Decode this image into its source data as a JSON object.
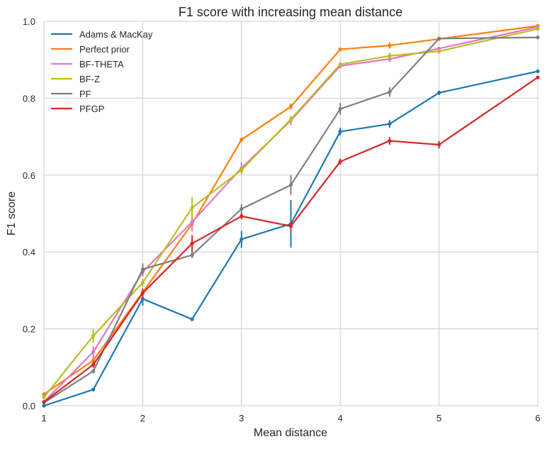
{
  "chart_data": {
    "type": "line",
    "title": "F1 score with increasing mean distance",
    "xlabel": "Mean distance",
    "ylabel": "F1 score",
    "xlim": [
      1,
      6
    ],
    "ylim": [
      0,
      1
    ],
    "xticks": [
      1,
      2,
      3,
      4,
      5,
      6
    ],
    "yticks": [
      0.0,
      0.2,
      0.4,
      0.6,
      0.8,
      1.0
    ],
    "xtick_labels": [
      "1",
      "2",
      "3",
      "4",
      "5",
      "6"
    ],
    "ytick_labels": [
      "0.0",
      "0.2",
      "0.4",
      "0.6",
      "0.8",
      "1.0"
    ],
    "grid": true,
    "legend_position": "top-left",
    "x": [
      1,
      1.5,
      2,
      2.5,
      3,
      3.5,
      4,
      4.5,
      5,
      6
    ],
    "series": [
      {
        "name": "Adams & MacKay",
        "color": "#1f77b4",
        "values": [
          0.0,
          0.042,
          0.278,
          0.225,
          0.433,
          0.473,
          0.713,
          0.733,
          0.814,
          0.87
        ],
        "errors": [
          0.0,
          0.004,
          0.018,
          0.004,
          0.022,
          0.062,
          0.01,
          0.01,
          0.006,
          0.004
        ]
      },
      {
        "name": "Perfect prior",
        "color": "#ff7f0e",
        "values": [
          0.03,
          0.118,
          0.295,
          0.473,
          0.692,
          0.778,
          0.927,
          0.937,
          0.954,
          0.988
        ],
        "errors": [
          0.004,
          0.01,
          0.008,
          0.012,
          0.006,
          0.008,
          0.004,
          0.008,
          0.004,
          0.004
        ]
      },
      {
        "name": "BF-THETA",
        "color": "#e377c2",
        "values": [
          0.01,
          0.14,
          0.348,
          0.478,
          0.618,
          0.742,
          0.884,
          0.902,
          0.929,
          0.985
        ],
        "errors": [
          0.004,
          0.015,
          0.012,
          0.025,
          0.015,
          0.012,
          0.006,
          0.008,
          0.004,
          0.004
        ]
      },
      {
        "name": "BF-Z",
        "color": "#bcbd22",
        "values": [
          0.022,
          0.182,
          0.32,
          0.515,
          0.613,
          0.745,
          0.888,
          0.91,
          0.922,
          0.98
        ],
        "errors": [
          0.006,
          0.018,
          0.01,
          0.028,
          0.01,
          0.008,
          0.005,
          0.008,
          0.006,
          0.004
        ]
      },
      {
        "name": "PF",
        "color": "#7f7f7f",
        "values": [
          0.008,
          0.09,
          0.355,
          0.392,
          0.512,
          0.574,
          0.772,
          0.816,
          0.955,
          0.958
        ],
        "errors": [
          0.004,
          0.006,
          0.015,
          0.008,
          0.012,
          0.025,
          0.015,
          0.012,
          0.004,
          0.004
        ]
      },
      {
        "name": "PFGP",
        "color": "#d62728",
        "values": [
          0.01,
          0.107,
          0.293,
          0.422,
          0.493,
          0.467,
          0.635,
          0.689,
          0.679,
          0.854
        ],
        "errors": [
          0.004,
          0.008,
          0.012,
          0.022,
          0.008,
          0.012,
          0.008,
          0.01,
          0.01,
          0.004
        ]
      }
    ]
  }
}
